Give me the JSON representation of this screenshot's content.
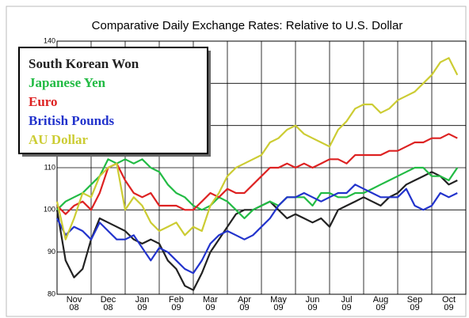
{
  "chart_data": {
    "type": "line",
    "title": "Comparative Daily Exchange Rates: Relative to U.S. Dollar",
    "x": [
      0,
      0.25,
      0.5,
      0.75,
      1,
      1.25,
      1.5,
      1.75,
      2,
      2.25,
      2.5,
      2.75,
      3,
      3.25,
      3.5,
      3.75,
      4,
      4.25,
      4.5,
      4.75,
      5,
      5.25,
      5.5,
      5.75,
      6,
      6.25,
      6.5,
      6.75,
      7,
      7.25,
      7.5,
      7.75,
      8,
      8.25,
      8.5,
      8.75,
      9,
      9.25,
      9.5,
      9.75,
      10,
      10.25,
      10.5,
      10.75,
      11,
      11.25,
      11.5,
      11.75
    ],
    "xlim": [
      0,
      12
    ],
    "xticks": [
      {
        "value": 0,
        "label": "Nov\n08"
      },
      {
        "value": 1,
        "label": "Dec\n08"
      },
      {
        "value": 2,
        "label": "Jan\n09"
      },
      {
        "value": 3,
        "label": "Feb\n09"
      },
      {
        "value": 4,
        "label": "Mar\n09"
      },
      {
        "value": 5,
        "label": "Apr\n09"
      },
      {
        "value": 6,
        "label": "May\n09"
      },
      {
        "value": 7,
        "label": "Jun\n09"
      },
      {
        "value": 8,
        "label": "Jul\n09"
      },
      {
        "value": 9,
        "label": "Aug\n09"
      },
      {
        "value": 10,
        "label": "Sep\n09"
      },
      {
        "value": 11,
        "label": "Oct\n09"
      }
    ],
    "ylim": [
      80,
      140
    ],
    "yticks": [
      80,
      90,
      100,
      110,
      120,
      130,
      140
    ],
    "grid": true,
    "legend": "upper-left",
    "series": [
      {
        "name": "South Korean Won",
        "color": "#222222",
        "values": [
          100,
          88,
          84,
          86,
          93,
          98,
          97,
          96,
          95,
          93,
          92,
          93,
          92,
          88,
          86,
          82,
          81,
          85,
          90,
          93,
          96,
          99,
          100,
          100,
          101,
          102,
          100,
          98,
          99,
          98,
          97,
          98,
          96,
          100,
          101,
          102,
          103,
          102,
          101,
          103,
          104,
          106,
          107,
          108,
          109,
          108,
          106,
          107
        ]
      },
      {
        "name": "Japanese Yen",
        "color": "#22bb44",
        "values": [
          100,
          102,
          103,
          104,
          106,
          108,
          112,
          111,
          112,
          111,
          112,
          110,
          109,
          106,
          104,
          103,
          101,
          100,
          101,
          103,
          102,
          100,
          98,
          100,
          101,
          102,
          101,
          103,
          103,
          103,
          101,
          104,
          104,
          103,
          103,
          104,
          104,
          105,
          106,
          107,
          108,
          109,
          110,
          110,
          108,
          108,
          107,
          110
        ]
      },
      {
        "name": "Euro",
        "color": "#dd2222",
        "values": [
          101,
          99,
          101,
          102,
          100,
          104,
          110,
          111,
          107,
          104,
          103,
          104,
          101,
          101,
          101,
          100,
          100,
          102,
          104,
          103,
          105,
          104,
          104,
          106,
          108,
          110,
          110,
          111,
          110,
          111,
          110,
          111,
          112,
          112,
          111,
          113,
          113,
          113,
          113,
          114,
          114,
          115,
          116,
          116,
          117,
          117,
          118,
          117
        ]
      },
      {
        "name": "British Pounds",
        "color": "#2233cc",
        "values": [
          98,
          94,
          96,
          95,
          93,
          97,
          95,
          93,
          93,
          94,
          91,
          88,
          91,
          90,
          88,
          86,
          85,
          88,
          92,
          94,
          95,
          94,
          93,
          94,
          96,
          98,
          101,
          103,
          103,
          104,
          103,
          102,
          103,
          104,
          104,
          106,
          105,
          104,
          103,
          103,
          103,
          105,
          101,
          100,
          101,
          104,
          103,
          104
        ]
      },
      {
        "name": "AU Dollar",
        "color": "#cccc33",
        "values": [
          102,
          93,
          98,
          104,
          103,
          108,
          110,
          111,
          100,
          103,
          101,
          97,
          95,
          96,
          97,
          94,
          96,
          95,
          101,
          104,
          108,
          110,
          111,
          112,
          113,
          116,
          117,
          119,
          120,
          118,
          117,
          116,
          115,
          119,
          121,
          124,
          125,
          125,
          123,
          124,
          126,
          127,
          128,
          130,
          132,
          135,
          136,
          132
        ]
      }
    ]
  }
}
